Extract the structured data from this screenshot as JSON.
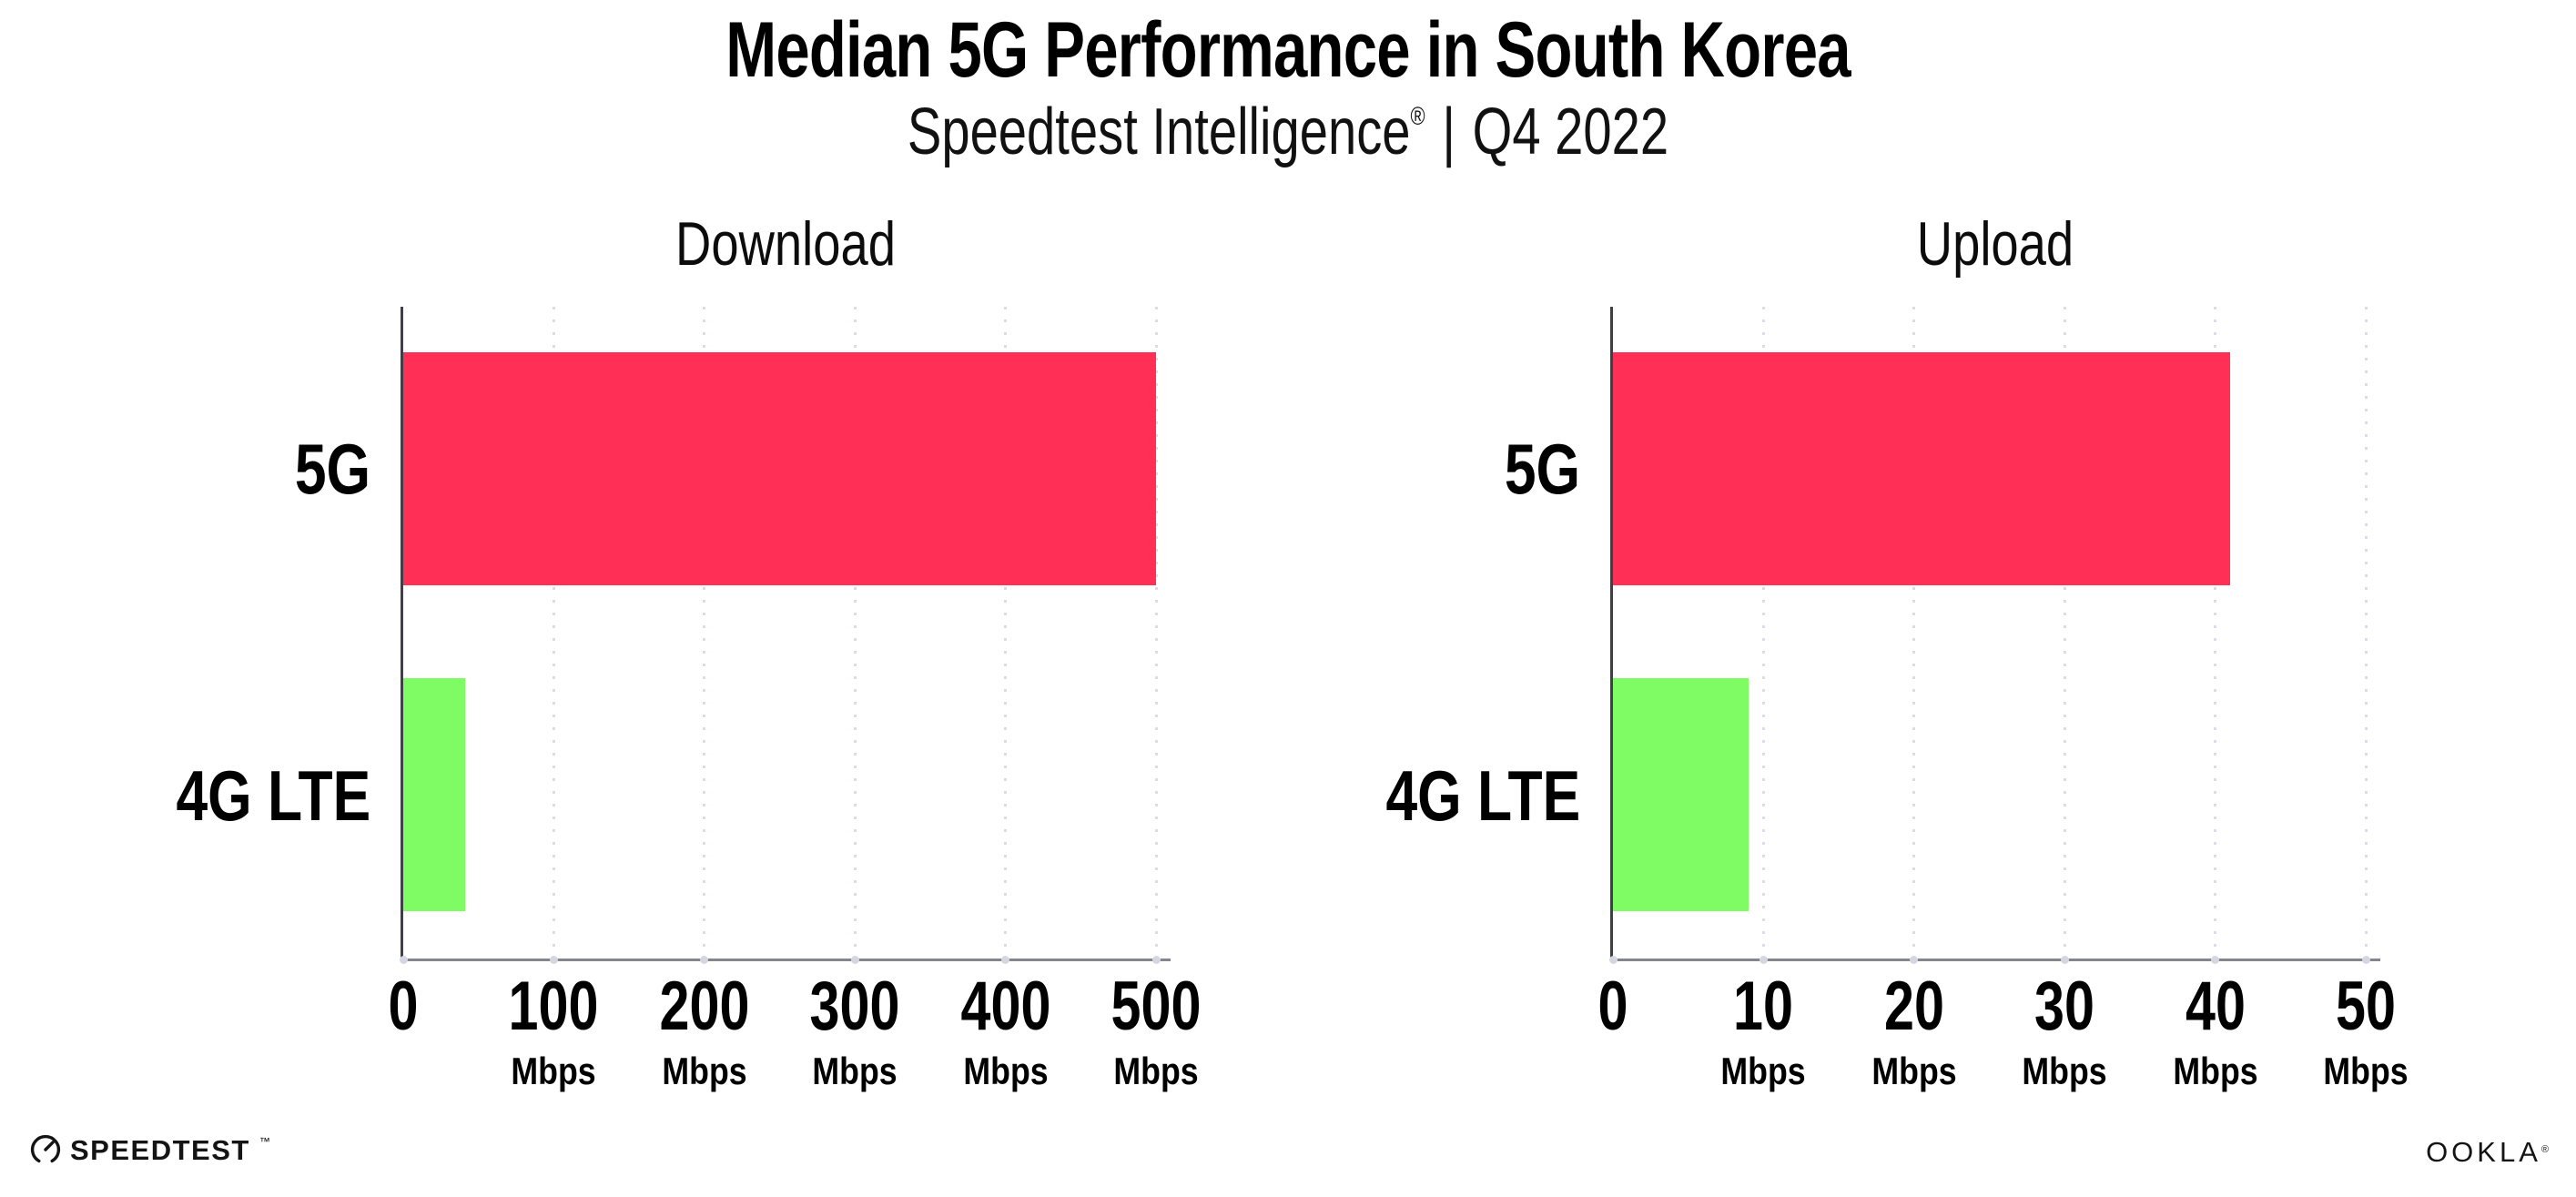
{
  "header": {
    "title": "Median 5G Performance in South Korea",
    "subtitle_product": "Speedtest Intelligence",
    "subtitle_mark": "®",
    "subtitle_separator": "|",
    "subtitle_period": "Q4 2022"
  },
  "chart_data": [
    {
      "type": "bar",
      "orientation": "horizontal",
      "title": "Download",
      "categories": [
        "5G",
        "4G LTE"
      ],
      "values": [
        500,
        41
      ],
      "unit": "Mbps",
      "xlim": [
        0,
        500
      ],
      "xticks": [
        0,
        100,
        200,
        300,
        400,
        500
      ],
      "bar_colors": [
        "#FF2F56",
        "#7FFB64"
      ],
      "grid": "dotted-vertical",
      "legend": "none"
    },
    {
      "type": "bar",
      "orientation": "horizontal",
      "title": "Upload",
      "categories": [
        "5G",
        "4G LTE"
      ],
      "values": [
        41,
        9
      ],
      "unit": "Mbps",
      "xlim": [
        0,
        50
      ],
      "xticks": [
        0,
        10,
        20,
        30,
        40,
        50
      ],
      "bar_colors": [
        "#FF2F56",
        "#7FFB64"
      ],
      "grid": "dotted-vertical",
      "legend": "none"
    }
  ],
  "footer": {
    "speedtest_logo_text": "SPEEDTEST",
    "speedtest_logo_mark": "™",
    "ookla_logo_text": "OOKLA",
    "ookla_logo_mark": "®"
  },
  "colors": {
    "background": "#FFFFFF",
    "bar_5g": "#FF2F56",
    "bar_4g_lte": "#7FFB64",
    "axis_x": "#85858D",
    "axis_y": "#3F3F47",
    "gridline": "#DCDCE6",
    "text": "#000000"
  }
}
